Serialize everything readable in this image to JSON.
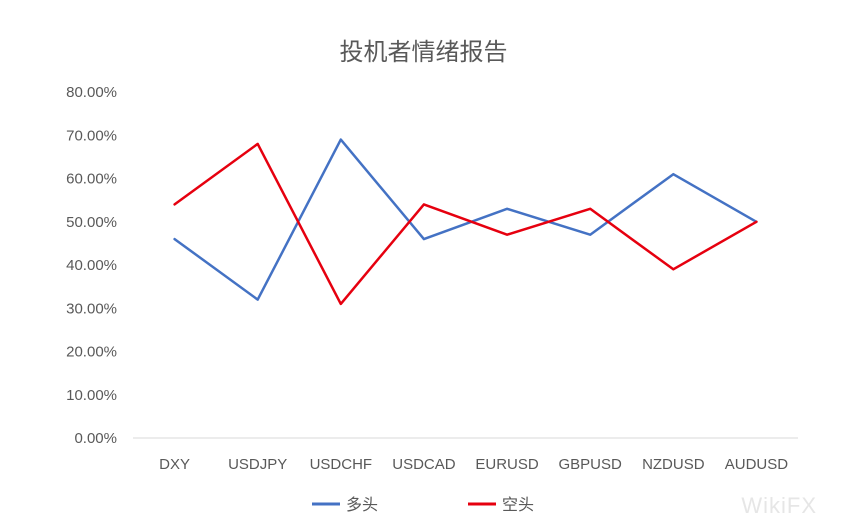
{
  "chart_data": {
    "type": "line",
    "title": "投机者情绪报告",
    "categories": [
      "DXY",
      "USDJPY",
      "USDCHF",
      "USDCAD",
      "EURUSD",
      "GBPUSD",
      "NZDUSD",
      "AUDUSD"
    ],
    "series": [
      {
        "name": "多头",
        "color": "#4472C4",
        "values": [
          46,
          32,
          69,
          46,
          53,
          47,
          61,
          50
        ]
      },
      {
        "name": "空头",
        "color": "#E6000F",
        "values": [
          54,
          68,
          31,
          54,
          47,
          53,
          39,
          50
        ]
      }
    ],
    "ylim": [
      0,
      80
    ],
    "yticks": [
      "0.00%",
      "10.00%",
      "20.00%",
      "30.00%",
      "40.00%",
      "50.00%",
      "60.00%",
      "70.00%",
      "80.00%"
    ],
    "grid": false,
    "legend_position": "bottom",
    "xlabel": "",
    "ylabel": ""
  },
  "watermark": "WikiFX"
}
